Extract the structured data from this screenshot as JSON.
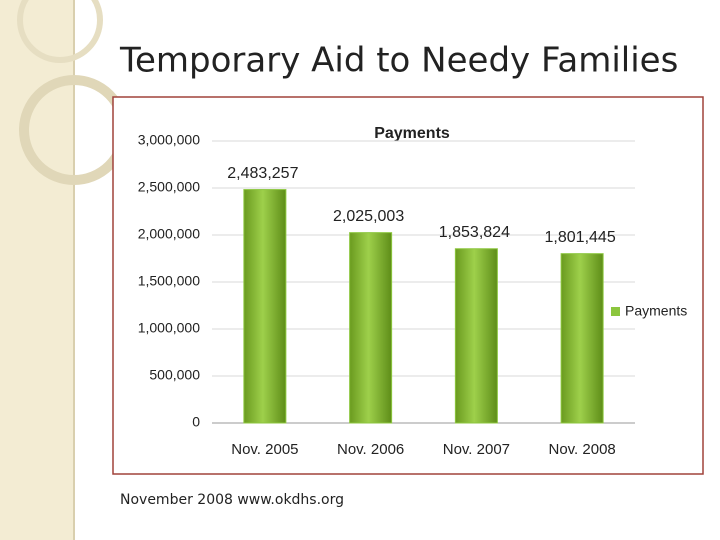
{
  "slide": {
    "title": "Temporary Aid to Needy Families",
    "footer": "November 2008 www.okdhs.org"
  },
  "chart_data": {
    "type": "bar",
    "title": "Payments",
    "categories": [
      "Nov. 2005",
      "Nov. 2006",
      "Nov. 2007",
      "Nov. 2008"
    ],
    "series": [
      {
        "name": "Payments",
        "color": "#8cc63e",
        "values": [
          2483257,
          2025003,
          1853824,
          1801445
        ],
        "value_labels": [
          "2,483,257",
          "2,025,003",
          "1,853,824",
          "1,801,445"
        ]
      }
    ],
    "ylim": [
      0,
      3000000
    ],
    "yticks": [
      0,
      {
        "value": 500000,
        "label": "500,000"
      },
      {
        "value": 1000000,
        "label": "1,000,000"
      },
      {
        "value": 1500000,
        "label": "1,500,000"
      },
      {
        "value": 2000000,
        "label": "2,000,000"
      },
      {
        "value": 2500000,
        "label": "2,500,000"
      },
      {
        "value": 3000000,
        "label": "3,000,000"
      }
    ],
    "grid": true,
    "legend": "right"
  }
}
